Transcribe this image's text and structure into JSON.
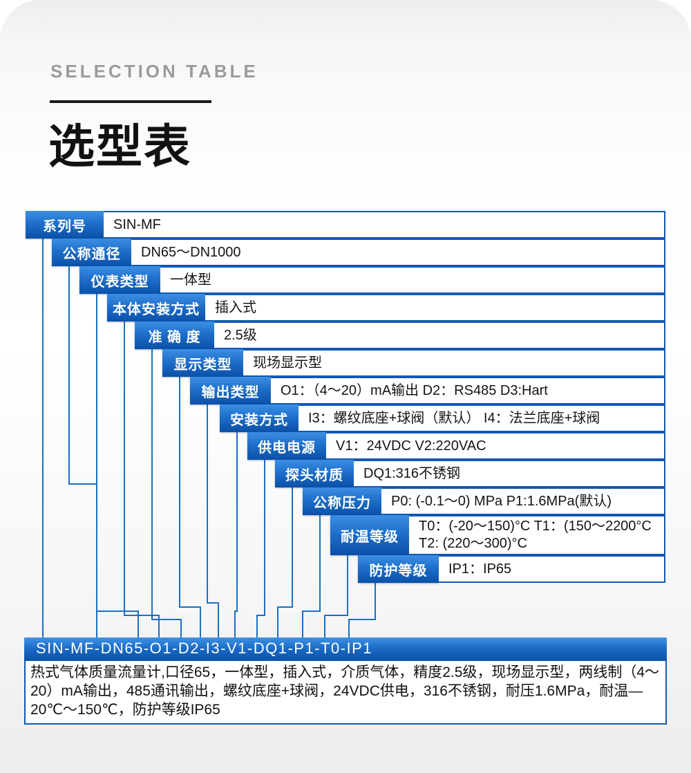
{
  "header": {
    "eyebrow": "SELECTION TABLE",
    "title": "选型表"
  },
  "table": {
    "rows": [
      {
        "label": "系列号",
        "value": "SIN-MF"
      },
      {
        "label": "公称通径",
        "value": "DN65～DN1000"
      },
      {
        "label": "仪表类型",
        "value": "一体型"
      },
      {
        "label": "本体安装方式",
        "value": "插入式"
      },
      {
        "label": "准 确 度",
        "value": "2.5级"
      },
      {
        "label": "显示类型",
        "value": "现场显示型"
      },
      {
        "label": "输出类型",
        "value": "O1：（4～20）mA输出 D2：RS485 D3:Hart"
      },
      {
        "label": "安装方式",
        "value": "I3：螺纹底座+球阀（默认） I4：法兰底座+球阀"
      },
      {
        "label": "供电电源",
        "value": "V1：24VDC V2:220VAC"
      },
      {
        "label": "探头材质",
        "value": "DQ1:316不锈钢"
      },
      {
        "label": "公称压力",
        "value": "P0: (-0.1～0) MPa P1:1.6MPa(默认)"
      },
      {
        "label": "耐温等级",
        "value": "T0：(-20～150)°C T1：(150～2200°C",
        "value2": "T2: (220～300)°C"
      },
      {
        "label": "防护等级",
        "value": "IP1：IP65"
      }
    ]
  },
  "result": {
    "code": "SIN-MF-DN65-O1-D2-I3-V1-DQ1-P1-T0-IP1",
    "description": "热式气体质量流量计,口径65，一体型，插入式，介质气体，精度2.5级，现场显示型，两线制（4～20）mA输出，485通讯输出，螺纹底座+球阀，24VDC供电，316不锈钢，耐压1.6MPa，耐温—20℃～150℃，防护等级IP65"
  },
  "colors": {
    "label_gradient_top": "#3c8fe3",
    "label_gradient_bottom": "#0b50a7",
    "value_border_blue": "#1258b4",
    "connector_line_blue": "#1b6fc4",
    "bar_gradient_top": "#3f92e4",
    "bar_gradient_bottom": "#0c55ac",
    "eyebrow_gray": "#9b9b9b",
    "text_dark": "#141414"
  }
}
